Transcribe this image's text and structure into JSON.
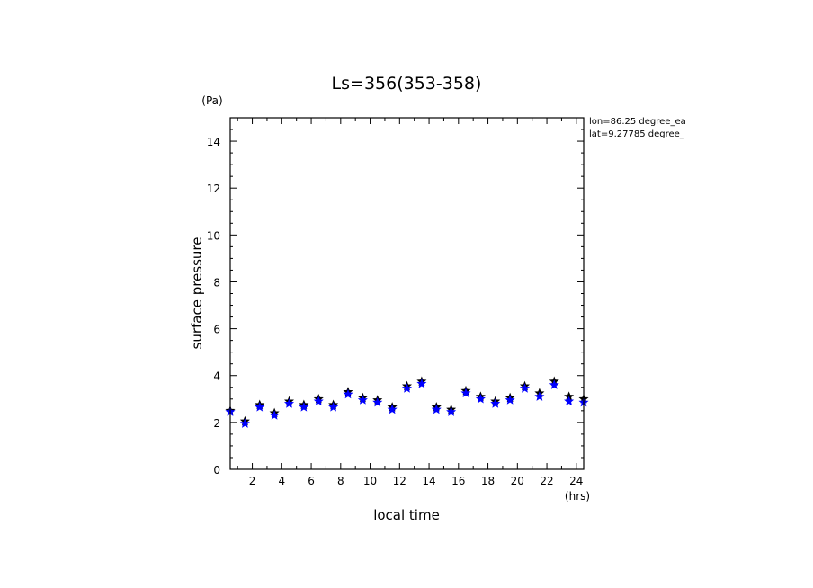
{
  "chart_data": {
    "type": "scatter",
    "title": "Ls=356(353-358)",
    "xlabel": "local time",
    "xunit": "(hrs)",
    "ylabel": "surface pressure",
    "yunit": "(Pa)",
    "annotations": [
      "lon=86.25 degree_ea",
      "lat=9.27785 degree_"
    ],
    "xlim": [
      0.5,
      24.5
    ],
    "ylim": [
      0,
      15
    ],
    "x_ticks": [
      2,
      4,
      6,
      8,
      10,
      12,
      14,
      16,
      18,
      20,
      22,
      24
    ],
    "y_ticks": [
      0,
      2,
      4,
      6,
      8,
      10,
      12,
      14
    ],
    "grid": false,
    "colors": {
      "primary": "#000000",
      "secondary": "#0000ff"
    },
    "series": [
      {
        "marker": "star",
        "color": "#000000",
        "x": [
          0.5,
          1.5,
          2.5,
          3.5,
          4.5,
          5.5,
          6.5,
          7.5,
          8.5,
          9.5,
          10.5,
          11.5,
          12.5,
          13.5,
          14.5,
          15.5,
          16.5,
          17.5,
          18.5,
          19.5,
          20.5,
          21.5,
          22.5,
          23.5,
          24.5
        ],
        "y": [
          2.5,
          2.05,
          2.75,
          2.4,
          2.9,
          2.75,
          3.0,
          2.75,
          3.3,
          3.05,
          2.95,
          2.65,
          3.55,
          3.75,
          2.65,
          2.55,
          3.35,
          3.1,
          2.9,
          3.05,
          3.55,
          3.25,
          3.75,
          3.1,
          3.0
        ]
      },
      {
        "marker": "star",
        "color": "#0000ff",
        "x": [
          0.5,
          1.5,
          2.5,
          3.5,
          4.5,
          5.5,
          6.5,
          7.5,
          8.5,
          9.5,
          10.5,
          11.5,
          12.5,
          13.5,
          14.5,
          15.5,
          16.5,
          17.5,
          18.5,
          19.5,
          20.5,
          21.5,
          22.5,
          23.5,
          24.5
        ],
        "y": [
          2.45,
          1.95,
          2.65,
          2.3,
          2.8,
          2.65,
          2.9,
          2.65,
          3.2,
          2.95,
          2.85,
          2.55,
          3.45,
          3.65,
          2.55,
          2.45,
          3.25,
          3.0,
          2.8,
          2.95,
          3.45,
          3.1,
          3.6,
          2.9,
          2.85
        ]
      }
    ]
  }
}
